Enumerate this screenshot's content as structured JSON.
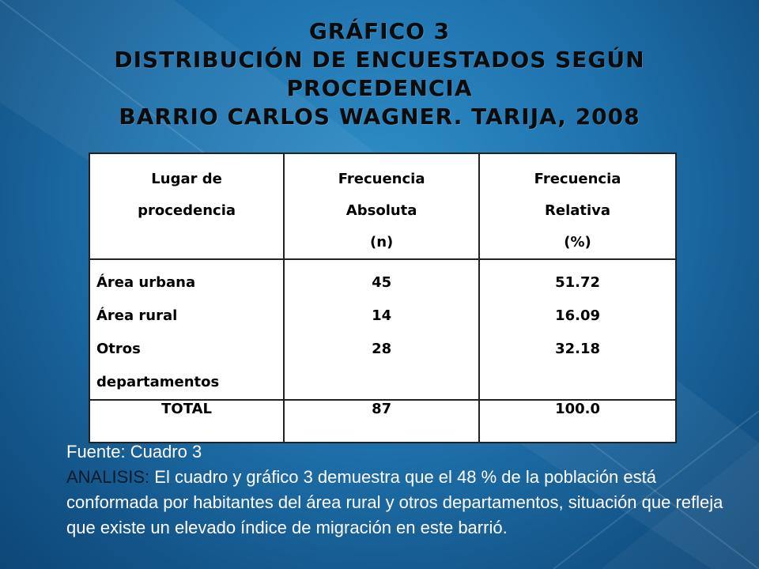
{
  "title": {
    "line1": "GRÁFICO 3",
    "line2": "DISTRIBUCIÓN DE ENCUESTADOS SEGÚN",
    "line3": "PROCEDENCIA",
    "line4": "BARRIO CARLOS WAGNER. TARIJA, 2008"
  },
  "table": {
    "headers": [
      [
        "Lugar de",
        "procedencia"
      ],
      [
        "Frecuencia",
        "Absoluta",
        "(n)"
      ],
      [
        "Frecuencia",
        "Relativa",
        "(%)"
      ]
    ],
    "places": [
      "Área urbana",
      "Área rural",
      "Otros",
      "departamentos"
    ],
    "absolute": [
      "45",
      "14",
      "28"
    ],
    "relative": [
      "51.72",
      "16.09",
      "32.18"
    ],
    "total": {
      "label": "TOTAL",
      "absolute": "87",
      "relative": "100.0"
    }
  },
  "footer": {
    "source": "Fuente: Cuadro 3",
    "analysis_label": "ANALISIS:",
    "analysis_text": " El cuadro y gráfico 3 demuestra que el 48 % de la población está conformada por habitantes del área rural y otros departamentos, situación que refleja que existe un elevado índice de migración en este barrió."
  }
}
